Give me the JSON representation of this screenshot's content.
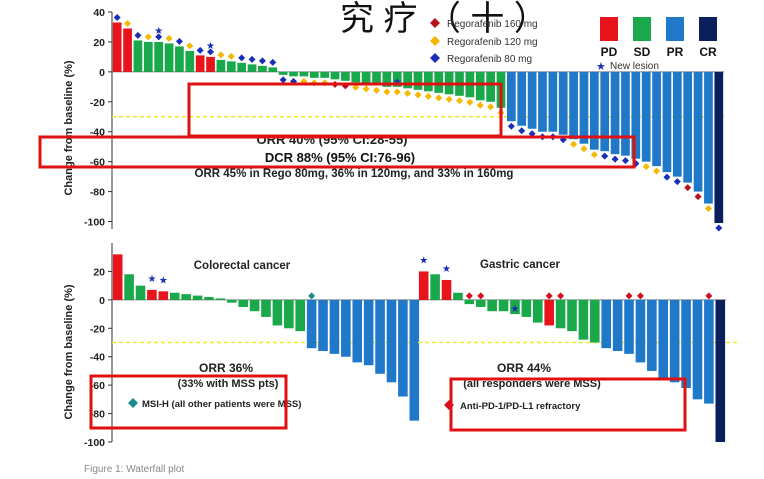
{
  "colors": {
    "pd": "#e8141b",
    "sd": "#19a84a",
    "pr": "#1f78c8",
    "cr": "#0a1f5c",
    "regorafenib_160": "#b5121b",
    "regorafenib_120": "#f5b800",
    "regorafenib_80": "#1a2fb8",
    "threshold": "#eaea30",
    "highlight_box": "#e01010",
    "msi_h": "#1a8a8a",
    "refractory": "#d01020"
  },
  "header_fragment": "究 疗 （ 十 ）",
  "chart_data": [
    {
      "type": "bar",
      "panel": "overall",
      "ylabel": "Change from baseline (%)",
      "ylim": [
        -105,
        40
      ],
      "yticks": [
        40,
        20,
        0,
        -20,
        -40,
        -60,
        -80,
        -100
      ],
      "threshold": -30,
      "values": [
        33,
        29,
        21,
        20,
        20,
        19,
        17,
        14,
        11,
        10,
        8,
        7,
        6,
        5,
        4,
        3,
        -2,
        -3,
        -3,
        -4,
        -4,
        -5,
        -6,
        -7,
        -8,
        -9,
        -10,
        -10,
        -11,
        -12,
        -13,
        -14,
        -15,
        -16,
        -17,
        -19,
        -20,
        -24,
        -33,
        -36,
        -38,
        -40,
        -40,
        -42,
        -45,
        -48,
        -52,
        -53,
        -55,
        -56,
        -58,
        -60,
        -63,
        -67,
        -70,
        -74,
        -80,
        -88,
        -101
      ],
      "response": [
        "PD",
        "PD",
        "SD",
        "SD",
        "SD",
        "SD",
        "SD",
        "SD",
        "PD",
        "PD",
        "SD",
        "SD",
        "SD",
        "SD",
        "SD",
        "SD",
        "SD",
        "SD",
        "SD",
        "SD",
        "SD",
        "SD",
        "SD",
        "SD",
        "SD",
        "SD",
        "SD",
        "SD",
        "SD",
        "SD",
        "SD",
        "SD",
        "SD",
        "SD",
        "SD",
        "SD",
        "SD",
        "SD",
        "PR",
        "PR",
        "PR",
        "PR",
        "PR",
        "PR",
        "PR",
        "PR",
        "PR",
        "PR",
        "PR",
        "PR",
        "PR",
        "PR",
        "PR",
        "PR",
        "PR",
        "PR",
        "PR",
        "PR",
        "CR"
      ],
      "dose_markers": [
        "80mg",
        "120mg",
        "80mg",
        "120mg",
        "80mg",
        "120mg",
        "80mg",
        "120mg",
        "80mg",
        "80mg",
        "120mg",
        "120mg",
        "80mg",
        "80mg",
        "80mg",
        "80mg",
        "80mg",
        "80mg",
        "120mg",
        "120mg",
        "120mg",
        "160mg",
        "160mg",
        "120mg",
        "120mg",
        "120mg",
        "120mg",
        "120mg",
        "120mg",
        "120mg",
        "120mg",
        "120mg",
        "120mg",
        "120mg",
        "120mg",
        "120mg",
        "120mg",
        "120mg",
        "80mg",
        "80mg",
        "80mg",
        "80mg",
        "80mg",
        "80mg",
        "120mg",
        "120mg",
        "120mg",
        "80mg",
        "80mg",
        "80mg",
        "80mg",
        "120mg",
        "120mg",
        "80mg",
        "80mg",
        "160mg",
        "160mg",
        "120mg",
        "80mg"
      ],
      "new_lesion_index": [
        4,
        9,
        27
      ],
      "legend": {
        "doses": [
          {
            "label": "Regorafenib 160 mg",
            "key": "regorafenib_160"
          },
          {
            "label": "Regorafenib 120 mg",
            "key": "regorafenib_120"
          },
          {
            "label": "Regorafenib 80 mg",
            "key": "regorafenib_80"
          }
        ],
        "new_lesion": "New lesion",
        "categories": [
          "PD",
          "SD",
          "PR",
          "CR"
        ]
      },
      "annotations": {
        "orr": "ORR 40% (95% CI:28-55)",
        "dcr": "DCR 88% (95% CI:76-96)",
        "orr_by_dose": "ORR 45% in Rego 80mg, 36% in 120mg, and 33% in 160mg"
      }
    },
    {
      "type": "bar",
      "panel": "colorectal",
      "title": "Colorectal cancer",
      "ylabel": "Change from baseline (%)",
      "ylim": [
        -100,
        40
      ],
      "yticks": [
        20,
        0,
        -20,
        -40,
        -60,
        -80,
        -100
      ],
      "threshold": -30,
      "values": [
        32,
        18,
        10,
        7,
        6,
        5,
        4,
        3,
        2,
        1,
        -2,
        -5,
        -8,
        -12,
        -18,
        -20,
        -22,
        -34,
        -36,
        -38,
        -40,
        -44,
        -46,
        -52,
        -58,
        -68,
        -85
      ],
      "response": [
        "PD",
        "SD",
        "SD",
        "PD",
        "PD",
        "SD",
        "SD",
        "SD",
        "SD",
        "SD",
        "SD",
        "SD",
        "SD",
        "SD",
        "SD",
        "SD",
        "SD",
        "PR",
        "PR",
        "PR",
        "PR",
        "PR",
        "PR",
        "PR",
        "PR",
        "PR",
        "PR"
      ],
      "new_lesion_index": [
        3,
        4
      ],
      "msi_h_index": [
        17
      ],
      "annotations": {
        "orr": "ORR 36%",
        "orr_note": "(33% with MSS pts)",
        "legend": "MSI-H (all other patients were MSS)"
      }
    },
    {
      "type": "bar",
      "panel": "gastric",
      "title": "Gastric cancer",
      "ylim": [
        -100,
        40
      ],
      "threshold": -30,
      "values": [
        20,
        18,
        14,
        5,
        -3,
        -5,
        -8,
        -8,
        -10,
        -12,
        -16,
        -18,
        -20,
        -22,
        -28,
        -30,
        -34,
        -36,
        -38,
        -44,
        -50,
        -55,
        -58,
        -62,
        -70,
        -73,
        -100
      ],
      "response": [
        "PD",
        "SD",
        "PD",
        "SD",
        "SD",
        "SD",
        "SD",
        "SD",
        "SD",
        "SD",
        "SD",
        "PD",
        "SD",
        "SD",
        "SD",
        "SD",
        "PR",
        "PR",
        "PR",
        "PR",
        "PR",
        "PR",
        "PR",
        "PR",
        "PR",
        "PR",
        "CR"
      ],
      "new_lesion_index": [
        0,
        2,
        8
      ],
      "refractory_index": [
        4,
        5,
        11,
        12,
        18,
        19,
        25
      ],
      "annotations": {
        "orr": "ORR 44%",
        "orr_note": "(all responders were MSS)",
        "legend": "Anti-PD-1/PD-L1 refractory"
      }
    }
  ],
  "footer_fragment": "Figure 1: Waterfall plot"
}
